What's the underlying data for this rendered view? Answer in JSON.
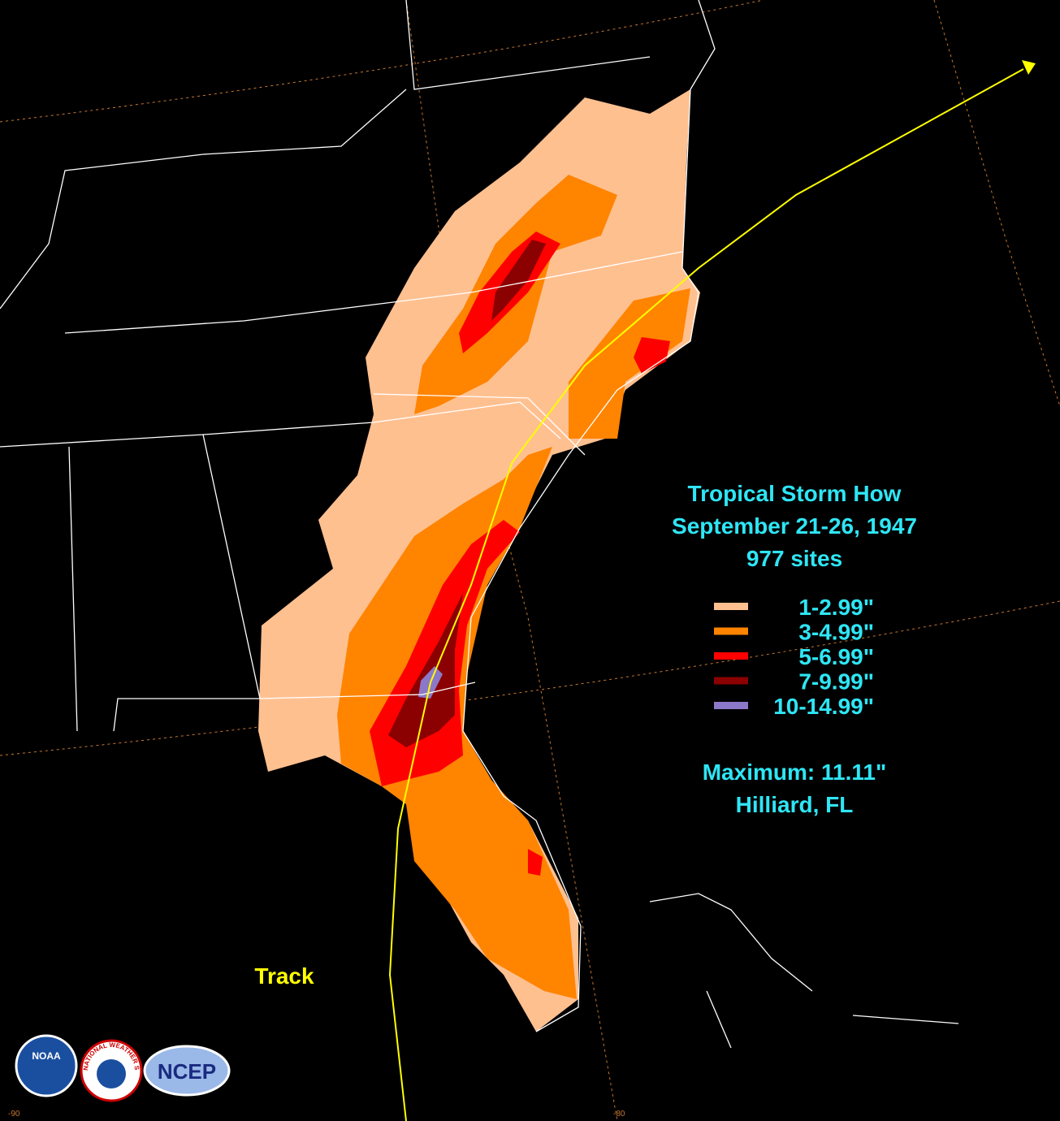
{
  "title": {
    "line1": "Tropical Storm How",
    "line2": "September 21-26, 1947",
    "line3": "977 sites"
  },
  "legend": [
    {
      "label": "1-2.99\"",
      "color": "#ffc090"
    },
    {
      "label": "3-4.99\"",
      "color": "#ff8400"
    },
    {
      "label": "5-6.99\"",
      "color": "#ff0000"
    },
    {
      "label": "7-9.99\"",
      "color": "#8b0000"
    },
    {
      "label": "10-14.99\"",
      "color": "#8c78c8"
    }
  ],
  "maximum": "Maximum: 11.11\"",
  "location": "Hilliard, FL",
  "track_label": "Track",
  "logos": {
    "noaa": "NOAA",
    "nws": "NATIONAL WEATHER SERVICE",
    "ncep": "NCEP"
  },
  "longitude_labels": [
    "-90",
    "-80"
  ]
}
